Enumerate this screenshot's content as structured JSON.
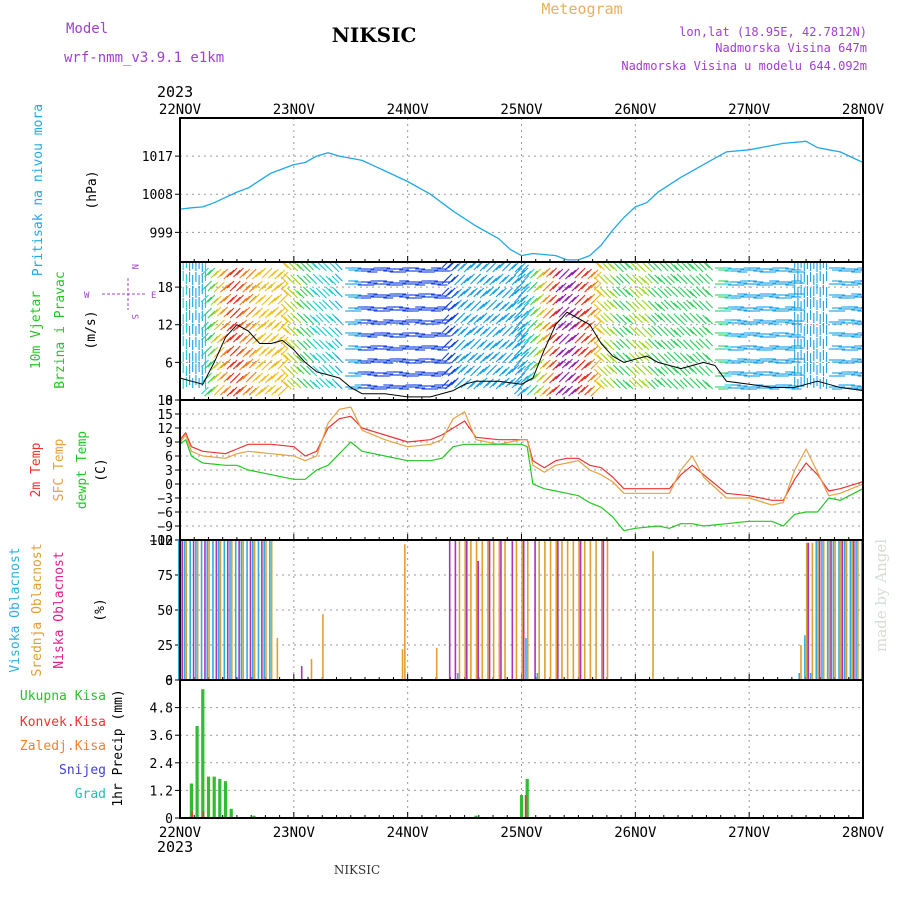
{
  "header": {
    "model_label": "Model",
    "model_name": "wrf-nmm_v3.9.1  e1km",
    "station": "NIKSIC",
    "product": "Meteogram",
    "lonlat": "lon,lat (18.95E, 42.7812N)",
    "elevation": "Nadmorska Visina 647m",
    "model_elevation": "Nadmorska Visina u modelu 644.092m",
    "footer_station": "NIKSIC",
    "watermark": "made by Angel",
    "year_label": "2023"
  },
  "colors": {
    "frame": "#000000",
    "grid": "#9a9a9a",
    "pressure": "#22a8e6",
    "t2m": "#ee3333",
    "sfc": "#e8a040",
    "dewpt": "#22c822",
    "high_cloud": "#2ab0e0",
    "mid_cloud": "#e0a030",
    "low_cloud": "#b030c0",
    "precip_total": "#33bb33",
    "precip_conv": "#ee3333",
    "purple_text": "#a040d0",
    "orange_text": "#e8b060"
  },
  "chart_data": [
    {
      "type": "line",
      "panel": "pressure",
      "ylabel_lines": [
        "Pritisak na nivou mora"
      ],
      "unit": "(hPa)",
      "x_ticks": [
        "22NOV",
        "23NOV",
        "24NOV",
        "25NOV",
        "26NOV",
        "27NOV",
        "28NOV"
      ],
      "x_range_days": [
        22,
        28
      ],
      "y_ticks": [
        999,
        1008,
        1017
      ],
      "ylim": [
        992,
        1026
      ],
      "series": [
        {
          "x": [
            22.0,
            22.1,
            22.2,
            22.3,
            22.5,
            22.6,
            22.8,
            23.0,
            23.1,
            23.2,
            23.3,
            23.4,
            23.6,
            23.8,
            24.0,
            24.2,
            24.4,
            24.6,
            24.8,
            24.9,
            25.0,
            25.1,
            25.3,
            25.4,
            25.5,
            25.6,
            25.7,
            25.8,
            25.9,
            26.0,
            26.1,
            26.2,
            26.4,
            26.6,
            26.7,
            26.8,
            27.0,
            27.2,
            27.3,
            27.5,
            27.6,
            27.7,
            27.8,
            28.0
          ],
          "y": [
            1004.5,
            1004.8,
            1005,
            1006,
            1008.5,
            1009.5,
            1013,
            1015,
            1015.5,
            1017,
            1017.8,
            1017,
            1016,
            1013.5,
            1011,
            1008,
            1004,
            1000.5,
            997.5,
            995,
            993.5,
            994,
            993.5,
            992.5,
            992.5,
            993.5,
            996,
            999.5,
            1002.5,
            1005,
            1006,
            1008.5,
            1012,
            1015,
            1016.5,
            1018,
            1018.5,
            1019.5,
            1020,
            1020.5,
            1019,
            1018.5,
            1018,
            1015.5
          ]
        }
      ]
    },
    {
      "type": "line",
      "panel": "wind",
      "ylabel_lines": [
        "10m Vjetar",
        "Brzina i Pravac"
      ],
      "unit": "(m/s)",
      "compass_labels": {
        "n": "N",
        "s": "S",
        "e": "E",
        "w": "W"
      },
      "y_ticks": [
        0,
        6,
        12,
        18
      ],
      "ylim": [
        0,
        22
      ],
      "series": [
        {
          "name": "speed",
          "x": [
            22.0,
            22.1,
            22.2,
            22.3,
            22.4,
            22.5,
            22.6,
            22.7,
            22.8,
            22.9,
            23.0,
            23.1,
            23.2,
            23.3,
            23.4,
            23.5,
            23.6,
            23.8,
            24.0,
            24.2,
            24.4,
            24.5,
            24.6,
            24.8,
            25.0,
            25.1,
            25.2,
            25.3,
            25.4,
            25.5,
            25.6,
            25.7,
            25.8,
            25.9,
            26.0,
            26.1,
            26.2,
            26.3,
            26.4,
            26.5,
            26.6,
            26.7,
            26.8,
            27.0,
            27.2,
            27.4,
            27.5,
            27.6,
            27.7,
            27.8,
            28.0
          ],
          "y": [
            3.5,
            3,
            2.5,
            6,
            10,
            12,
            11,
            9,
            9,
            9.5,
            8,
            6,
            4.5,
            4,
            3.5,
            2,
            1,
            1,
            0.5,
            0.5,
            1.5,
            2.5,
            3,
            3,
            2.5,
            3.5,
            8,
            12,
            14,
            13,
            12,
            9,
            7,
            6,
            6.5,
            7,
            6,
            5.5,
            5,
            5.5,
            6,
            5.5,
            3,
            2.5,
            2,
            2,
            2.5,
            3,
            2.5,
            2,
            1.5
          ]
        }
      ],
      "direction_segments": [
        {
          "from": 22.0,
          "to": 22.25,
          "dir": "N"
        },
        {
          "from": 22.25,
          "to": 22.95,
          "dir": "SW"
        },
        {
          "from": 22.95,
          "to": 23.45,
          "dir": "NW"
        },
        {
          "from": 23.45,
          "to": 24.3,
          "dir": "E"
        },
        {
          "from": 24.3,
          "to": 25.0,
          "dir": "NE"
        },
        {
          "from": 25.0,
          "to": 25.7,
          "dir": "SW"
        },
        {
          "from": 25.7,
          "to": 26.7,
          "dir": "NW"
        },
        {
          "from": 26.7,
          "to": 27.4,
          "dir": "E"
        },
        {
          "from": 27.4,
          "to": 27.7,
          "dir": "N"
        },
        {
          "from": 27.7,
          "to": 28.0,
          "dir": "E"
        }
      ]
    },
    {
      "type": "line",
      "panel": "temperature",
      "ylabel_lines": [
        "2m Temp",
        "SFC Temp",
        "dewpt Temp"
      ],
      "unit": "(C)",
      "y_ticks": [
        -12,
        -9,
        -6,
        -3,
        0,
        3,
        6,
        9,
        12,
        15,
        18
      ],
      "ylim": [
        -12,
        18
      ],
      "series": [
        {
          "name": "2m Temp",
          "x": [
            22.0,
            22.05,
            22.1,
            22.2,
            22.4,
            22.5,
            22.6,
            22.8,
            23.0,
            23.1,
            23.2,
            23.3,
            23.4,
            23.5,
            23.6,
            23.8,
            24.0,
            24.2,
            24.3,
            24.4,
            24.5,
            24.6,
            24.8,
            25.0,
            25.05,
            25.1,
            25.2,
            25.3,
            25.4,
            25.5,
            25.6,
            25.7,
            25.8,
            25.9,
            26.0,
            26.2,
            26.3,
            26.4,
            26.5,
            26.6,
            26.8,
            27.0,
            27.2,
            27.3,
            27.4,
            27.5,
            27.6,
            27.7,
            27.8,
            28.0
          ],
          "y": [
            9.5,
            11,
            8,
            7,
            6.5,
            7.5,
            8.5,
            8.5,
            8,
            6,
            7,
            12,
            14,
            14.5,
            12,
            10.5,
            9,
            9.5,
            10.5,
            12,
            13.5,
            10,
            9.5,
            9.5,
            9.5,
            5,
            3.5,
            5,
            5.5,
            5.5,
            4,
            3.5,
            1.5,
            -1,
            -1,
            -1,
            -1,
            2,
            4,
            2,
            -2,
            -2.5,
            -3.5,
            -3.5,
            1,
            4.5,
            2,
            -1.5,
            -1,
            0.5
          ]
        },
        {
          "name": "SFC Temp",
          "x": [
            22.0,
            22.05,
            22.1,
            22.2,
            22.4,
            22.5,
            22.6,
            22.8,
            23.0,
            23.1,
            23.2,
            23.3,
            23.4,
            23.5,
            23.6,
            23.8,
            24.0,
            24.2,
            24.3,
            24.4,
            24.5,
            24.6,
            24.8,
            25.0,
            25.05,
            25.1,
            25.2,
            25.3,
            25.4,
            25.5,
            25.6,
            25.7,
            25.8,
            25.9,
            26.0,
            26.2,
            26.3,
            26.4,
            26.5,
            26.6,
            26.8,
            27.0,
            27.2,
            27.3,
            27.4,
            27.5,
            27.6,
            27.7,
            27.8,
            28.0
          ],
          "y": [
            9,
            10.5,
            7,
            6,
            5.5,
            6.5,
            7,
            6.5,
            6,
            5,
            6,
            13,
            16,
            16.5,
            11.5,
            9.5,
            8,
            8.5,
            9.5,
            14,
            15.5,
            9.5,
            8.5,
            9.5,
            9.5,
            4,
            2.5,
            4,
            4.5,
            5,
            3,
            2,
            0.5,
            -2,
            -2,
            -2,
            -2,
            3,
            6,
            1.5,
            -3,
            -3,
            -4.5,
            -4,
            3,
            7.5,
            2.5,
            -2.5,
            -2,
            0
          ]
        },
        {
          "name": "dewpt Temp",
          "x": [
            22.0,
            22.05,
            22.1,
            22.2,
            22.4,
            22.5,
            22.6,
            22.8,
            23.0,
            23.1,
            23.2,
            23.3,
            23.4,
            23.5,
            23.6,
            23.8,
            24.0,
            24.2,
            24.3,
            24.4,
            24.5,
            24.6,
            24.8,
            25.0,
            25.05,
            25.1,
            25.2,
            25.3,
            25.4,
            25.5,
            25.6,
            25.7,
            25.8,
            25.9,
            26.0,
            26.2,
            26.3,
            26.4,
            26.5,
            26.6,
            26.8,
            27.0,
            27.2,
            27.3,
            27.4,
            27.5,
            27.6,
            27.7,
            27.8,
            28.0
          ],
          "y": [
            8.5,
            9.5,
            6,
            4.5,
            4,
            4,
            3,
            2,
            1,
            1,
            3,
            4,
            6.5,
            9,
            7,
            6,
            5,
            5,
            5.5,
            8,
            8.5,
            8.5,
            8.5,
            8.5,
            8,
            0,
            -1,
            -1.5,
            -2,
            -2.5,
            -4,
            -5,
            -7,
            -10,
            -9.5,
            -9,
            -9.5,
            -8.5,
            -8.5,
            -9,
            -8.5,
            -8,
            -8,
            -9,
            -6.5,
            -6,
            -6,
            -3,
            -3.5,
            -1
          ]
        }
      ]
    },
    {
      "type": "bar",
      "panel": "clouds",
      "ylabel_lines": [
        "Visoka Oblacnost",
        "Srednja Oblacnost",
        "Niska Oblacnost"
      ],
      "unit": "(%)",
      "y_ticks": [
        0,
        25,
        50,
        75,
        100
      ],
      "ylim": [
        0,
        100
      ],
      "series": [
        {
          "name": "Visoka Oblacnost",
          "x": [
            22.0,
            22.05,
            22.1,
            22.15,
            22.2,
            22.25,
            22.3,
            22.35,
            22.4,
            22.45,
            22.5,
            22.55,
            22.6,
            22.65,
            22.7,
            22.75,
            22.8,
            24.45,
            25.05,
            25.15,
            27.45,
            27.5,
            27.55,
            27.6,
            27.65,
            27.7,
            27.75,
            27.8,
            27.85,
            27.9,
            27.95,
            28.0
          ],
          "y": [
            100,
            100,
            100,
            100,
            100,
            100,
            100,
            100,
            100,
            100,
            100,
            100,
            100,
            100,
            100,
            100,
            100,
            5,
            30,
            5,
            5,
            32,
            5,
            100,
            100,
            100,
            100,
            100,
            100,
            100,
            100,
            100
          ]
        },
        {
          "name": "Srednja Oblacnost",
          "x": [
            22.05,
            22.15,
            22.25,
            22.35,
            22.45,
            22.55,
            22.65,
            22.75,
            22.8,
            22.85,
            23.15,
            23.25,
            23.95,
            23.97,
            24.25,
            24.45,
            24.5,
            24.55,
            24.6,
            24.65,
            24.7,
            24.75,
            24.8,
            24.85,
            24.95,
            25.0,
            25.05,
            25.15,
            25.2,
            25.25,
            25.3,
            25.35,
            25.4,
            25.45,
            25.5,
            25.55,
            25.6,
            25.65,
            25.7,
            25.75,
            26.15,
            27.45,
            27.5,
            27.55,
            27.6,
            27.65,
            27.7,
            27.75,
            27.8,
            27.85,
            27.9,
            27.95
          ],
          "y": [
            100,
            100,
            100,
            100,
            100,
            100,
            100,
            100,
            100,
            30,
            15,
            47,
            22,
            97,
            23,
            100,
            100,
            100,
            100,
            100,
            100,
            100,
            100,
            100,
            100,
            100,
            100,
            100,
            100,
            100,
            100,
            100,
            100,
            100,
            100,
            100,
            100,
            100,
            100,
            100,
            92,
            25,
            98,
            98,
            100,
            100,
            100,
            100,
            100,
            100,
            100,
            100
          ]
        },
        {
          "name": "Niska Oblacnost",
          "x": [
            22.0,
            22.1,
            22.2,
            22.3,
            22.4,
            22.5,
            22.6,
            22.7,
            23.05,
            24.35,
            24.4,
            24.5,
            24.6,
            24.7,
            24.8,
            24.9,
            25.0,
            25.1,
            25.3,
            25.5,
            25.7,
            27.5,
            27.6,
            27.7,
            27.8,
            27.9
          ],
          "y": [
            100,
            100,
            100,
            100,
            100,
            100,
            100,
            100,
            10,
            100,
            100,
            100,
            85,
            100,
            100,
            100,
            100,
            100,
            100,
            100,
            100,
            98,
            100,
            100,
            100,
            100
          ]
        }
      ]
    },
    {
      "type": "bar",
      "panel": "precipitation",
      "ylabel": "1hr Precip (mm)",
      "legend": [
        "Ukupna  Kisa",
        "Konvek.Kisa",
        "Zaledj.Kisa",
        "Snijeg",
        "Grad"
      ],
      "y_ticks": [
        0,
        1.2,
        2.4,
        3.6,
        4.8,
        6
      ],
      "ylim": [
        0,
        6
      ],
      "series": [
        {
          "name": "Ukupna  Kisa",
          "x": [
            22.1,
            22.15,
            22.2,
            22.25,
            22.3,
            22.35,
            22.4,
            22.45,
            22.65,
            24.6,
            25.0,
            25.05
          ],
          "y": [
            1.5,
            4,
            5.6,
            1.8,
            1.8,
            1.7,
            1.6,
            0.4,
            0.1,
            0.1,
            1,
            1.7
          ]
        },
        {
          "name": "Konvek.Kisa",
          "x": [
            22.1,
            22.2,
            25.03
          ],
          "y": [
            0.3,
            0.3,
            1
          ]
        }
      ]
    }
  ]
}
